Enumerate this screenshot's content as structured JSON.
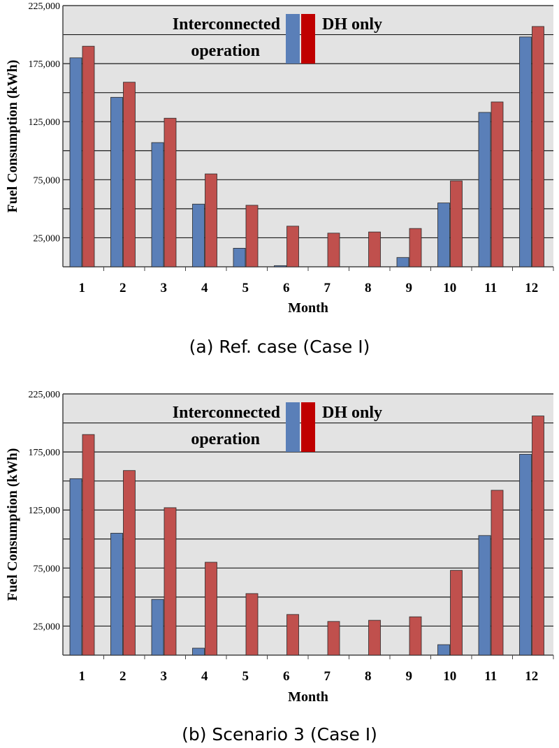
{
  "chart_data": [
    {
      "type": "bar",
      "caption": "(a) Ref. case (Case I)",
      "xlabel": "Month",
      "ylabel": "Fuel Consumption (kWh)",
      "ylim": [
        0,
        225000
      ],
      "yticks": [
        "225,000",
        "175,000",
        "125,000",
        "75,000",
        "25,000"
      ],
      "gridlines": [
        25000,
        50000,
        75000,
        100000,
        125000,
        150000,
        175000,
        200000,
        225000
      ],
      "categories": [
        "1",
        "2",
        "3",
        "4",
        "5",
        "6",
        "7",
        "8",
        "9",
        "10",
        "11",
        "12"
      ],
      "legend": [
        "Interconnected",
        "operation",
        "DH only"
      ],
      "series": [
        {
          "name": "Interconnected operation",
          "color": "#5a7fb8",
          "values": [
            180000,
            146000,
            107000,
            54000,
            16000,
            1000,
            0,
            0,
            8000,
            55000,
            133000,
            198000
          ]
        },
        {
          "name": "DH only",
          "color": "#c0504d",
          "values": [
            190000,
            159000,
            128000,
            80000,
            53000,
            35000,
            29000,
            30000,
            33000,
            74000,
            142000,
            207000
          ]
        }
      ]
    },
    {
      "type": "bar",
      "caption": "(b) Scenario 3 (Case I)",
      "xlabel": "Month",
      "ylabel": "Fuel Consumption (kWh)",
      "ylim": [
        0,
        225000
      ],
      "yticks": [
        "225,000",
        "175,000",
        "125,000",
        "75,000",
        "25,000"
      ],
      "gridlines": [
        25000,
        50000,
        75000,
        100000,
        125000,
        150000,
        175000,
        200000,
        225000
      ],
      "categories": [
        "1",
        "2",
        "3",
        "4",
        "5",
        "6",
        "7",
        "8",
        "9",
        "10",
        "11",
        "12"
      ],
      "legend": [
        "Interconnected",
        "operation",
        "DH only"
      ],
      "series": [
        {
          "name": "Interconnected operation",
          "color": "#5a7fb8",
          "values": [
            152000,
            105000,
            48000,
            6000,
            0,
            0,
            0,
            0,
            0,
            9000,
            103000,
            173000
          ]
        },
        {
          "name": "DH only",
          "color": "#c0504d",
          "values": [
            190000,
            159000,
            127000,
            80000,
            53000,
            35000,
            29000,
            30000,
            33000,
            73000,
            142000,
            206000
          ]
        }
      ]
    }
  ]
}
